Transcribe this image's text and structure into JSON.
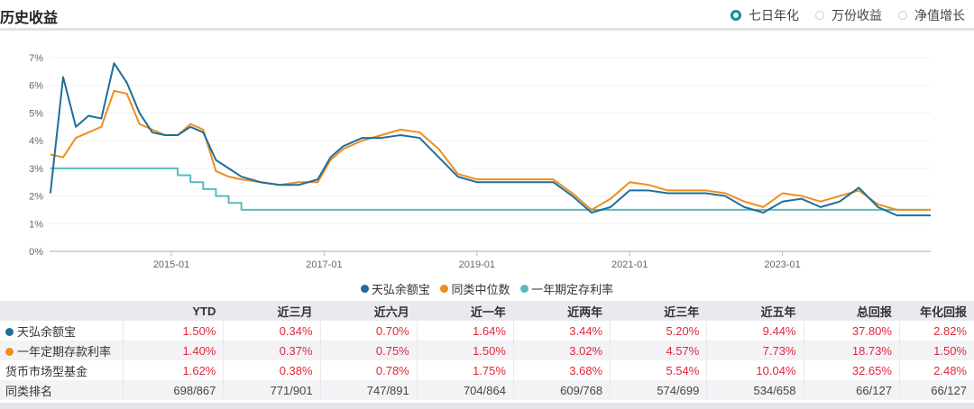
{
  "header": {
    "title": "历史收益",
    "radios": [
      {
        "label": "七日年化",
        "selected": true
      },
      {
        "label": "万份收益",
        "selected": false
      },
      {
        "label": "净值增长",
        "selected": false
      }
    ]
  },
  "colors": {
    "fund": "#1f6e9a",
    "median": "#f08c1e",
    "deposit": "#5ab9c1",
    "positive": "#e0283a",
    "radio_accent": "#1a8a9a"
  },
  "chart_data": {
    "type": "line",
    "title": "历史收益 - 七日年化",
    "xlabel": "",
    "ylabel": "",
    "ylim": [
      0,
      7
    ],
    "yticks": [
      "0%",
      "1%",
      "2%",
      "3%",
      "4%",
      "5%",
      "6%",
      "7%"
    ],
    "xticks": [
      "2015-01",
      "2017-01",
      "2019-01",
      "2021-01",
      "2023-01"
    ],
    "grid": true,
    "legend_position": "bottom",
    "x": [
      "2013-06",
      "2013-08",
      "2013-10",
      "2013-12",
      "2014-02",
      "2014-04",
      "2014-06",
      "2014-08",
      "2014-10",
      "2014-12",
      "2015-02",
      "2015-04",
      "2015-06",
      "2015-08",
      "2015-10",
      "2015-12",
      "2016-03",
      "2016-06",
      "2016-09",
      "2016-12",
      "2017-02",
      "2017-04",
      "2017-07",
      "2017-10",
      "2018-01",
      "2018-04",
      "2018-07",
      "2018-10",
      "2019-01",
      "2019-04",
      "2019-07",
      "2019-10",
      "2020-01",
      "2020-04",
      "2020-07",
      "2020-10",
      "2021-01",
      "2021-04",
      "2021-07",
      "2021-10",
      "2022-01",
      "2022-04",
      "2022-07",
      "2022-10",
      "2023-01",
      "2023-04",
      "2023-07",
      "2023-10",
      "2024-01",
      "2024-04",
      "2024-07"
    ],
    "series": [
      {
        "name": "天弘余额宝",
        "values": [
          2.1,
          6.3,
          4.5,
          4.9,
          4.8,
          6.8,
          6.1,
          5.0,
          4.3,
          4.2,
          4.2,
          4.5,
          4.3,
          3.3,
          3.0,
          2.7,
          2.5,
          2.4,
          2.4,
          2.6,
          3.4,
          3.8,
          4.1,
          4.1,
          4.2,
          4.1,
          3.4,
          2.7,
          2.5,
          2.5,
          2.5,
          2.5,
          2.5,
          2.0,
          1.4,
          1.6,
          2.2,
          2.2,
          2.1,
          2.1,
          2.1,
          2.0,
          1.6,
          1.4,
          1.8,
          1.9,
          1.6,
          1.8,
          2.3,
          1.6,
          1.3
        ]
      },
      {
        "name": "同类中位数",
        "values": [
          3.5,
          3.4,
          4.1,
          4.3,
          4.5,
          5.8,
          5.7,
          4.6,
          4.4,
          4.2,
          4.2,
          4.6,
          4.4,
          2.9,
          2.7,
          2.6,
          2.5,
          2.4,
          2.5,
          2.5,
          3.3,
          3.7,
          4.0,
          4.2,
          4.4,
          4.3,
          3.7,
          2.8,
          2.6,
          2.6,
          2.6,
          2.6,
          2.6,
          2.1,
          1.5,
          1.9,
          2.5,
          2.4,
          2.2,
          2.2,
          2.2,
          2.1,
          1.8,
          1.6,
          2.1,
          2.0,
          1.8,
          2.0,
          2.2,
          1.7,
          1.5
        ]
      },
      {
        "name": "一年期定存利率",
        "values": [
          3.0,
          3.0,
          3.0,
          3.0,
          3.0,
          3.0,
          3.0,
          3.0,
          3.0,
          3.0,
          2.75,
          2.5,
          2.25,
          2.0,
          1.75,
          1.5,
          1.5,
          1.5,
          1.5,
          1.5,
          1.5,
          1.5,
          1.5,
          1.5,
          1.5,
          1.5,
          1.5,
          1.5,
          1.5,
          1.5,
          1.5,
          1.5,
          1.5,
          1.5,
          1.5,
          1.5,
          1.5,
          1.5,
          1.5,
          1.5,
          1.5,
          1.5,
          1.5,
          1.5,
          1.5,
          1.5,
          1.5,
          1.5,
          1.5,
          1.5,
          1.5
        ]
      }
    ]
  },
  "legend": [
    {
      "label": "天弘余额宝",
      "color": "#1f6e9a"
    },
    {
      "label": "同类中位数",
      "color": "#f08c1e"
    },
    {
      "label": "一年期定存利率",
      "color": "#5ab9c1"
    }
  ],
  "table": {
    "columns": [
      "",
      "YTD",
      "近三月",
      "近六月",
      "近一年",
      "近两年",
      "近三年",
      "近五年",
      "总回报",
      "年化回报"
    ],
    "rows": [
      {
        "name": "天弘余额宝",
        "dot": "#1f6e9a",
        "values": [
          "1.50%",
          "0.34%",
          "0.70%",
          "1.64%",
          "3.44%",
          "5.20%",
          "9.44%",
          "37.80%",
          "2.82%"
        ]
      },
      {
        "name": "一年定期存款利率",
        "dot": "#f08c1e",
        "values": [
          "1.40%",
          "0.37%",
          "0.75%",
          "1.50%",
          "3.02%",
          "4.57%",
          "7.73%",
          "18.73%",
          "1.50%"
        ]
      },
      {
        "name": "货币市场型基金",
        "dot": null,
        "values": [
          "1.62%",
          "0.38%",
          "0.78%",
          "1.75%",
          "3.68%",
          "5.54%",
          "10.04%",
          "32.65%",
          "2.48%"
        ]
      },
      {
        "name": "同类排名",
        "dot": null,
        "values": [
          "698/867",
          "771/901",
          "747/891",
          "704/864",
          "609/768",
          "574/699",
          "534/658",
          "66/127",
          "66/127"
        ]
      }
    ]
  }
}
